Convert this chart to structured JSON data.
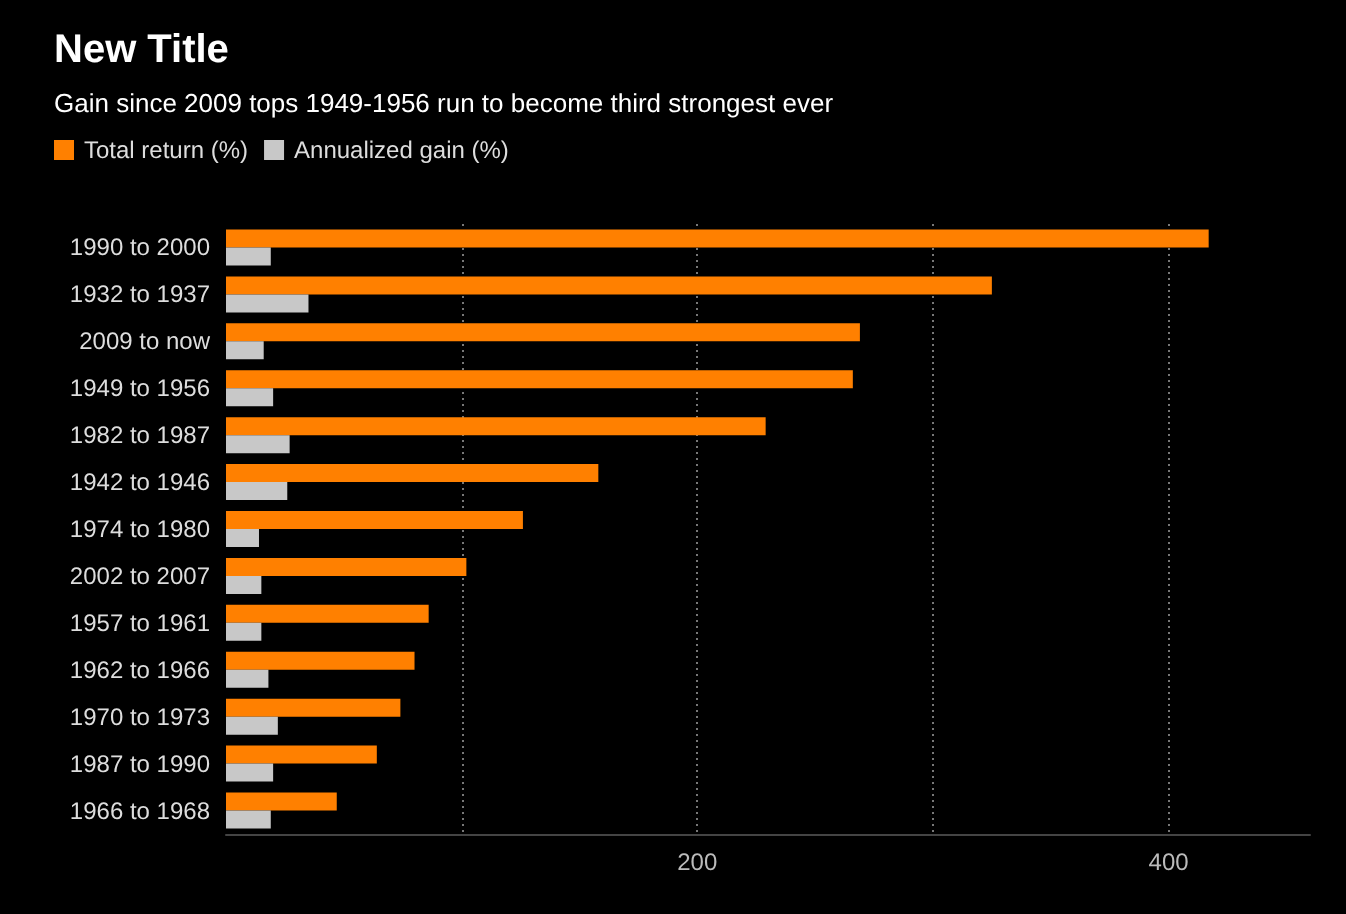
{
  "chart_data": {
    "type": "bar",
    "orientation": "horizontal",
    "title": "New Title",
    "subtitle": "Gain since 2009 tops 1949-1956 run to become third strongest ever",
    "categories": [
      "1990 to 2000",
      "1932 to 1937",
      "2009 to now",
      "1949 to 1956",
      "1982 to 1987",
      "1942 to 1946",
      "1974 to 1980",
      "2002 to 2007",
      "1957 to 1961",
      "1962 to 1966",
      "1970 to 1973",
      "1987 to 1990",
      "1966 to 1968"
    ],
    "series": [
      {
        "name": "Total return (%)",
        "color": "#ff8000",
        "values": [
          417,
          325,
          269,
          266,
          229,
          158,
          126,
          102,
          86,
          80,
          74,
          64,
          47
        ]
      },
      {
        "name": "Annualized gain (%)",
        "color": "#c8c8c8",
        "values": [
          19,
          35,
          16,
          20,
          27,
          26,
          14,
          15,
          15,
          18,
          22,
          20,
          19
        ]
      }
    ],
    "xlim": [
      0,
      460
    ],
    "xticks": [
      {
        "value": 100,
        "label": null
      },
      200,
      {
        "value": 300,
        "label": null
      },
      400
    ],
    "grid": "x",
    "legend": "top left"
  }
}
